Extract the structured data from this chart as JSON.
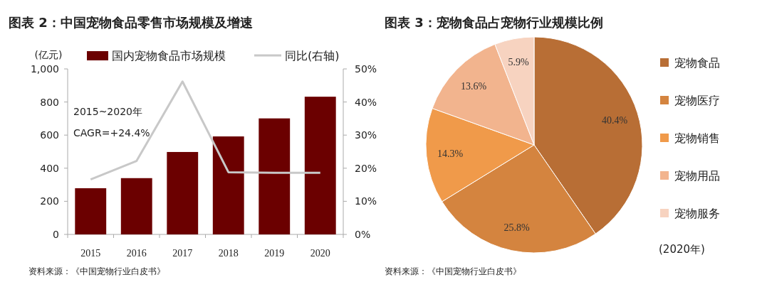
{
  "chart_data": [
    {
      "type": "bar",
      "title": "图表 2：中国宠物食品零售市场规模及增速",
      "ylabel": "(亿元)",
      "categories": [
        "2015",
        "2016",
        "2017",
        "2018",
        "2019",
        "2020"
      ],
      "series": [
        {
          "name": "国内宠物食品市场规模",
          "type": "bar",
          "color": "#6b0000",
          "values": [
            279,
            340,
            498,
            592,
            701,
            832
          ]
        },
        {
          "name": "同比(右轴)",
          "type": "line",
          "axis": "y2",
          "color": "#c8c8c8",
          "values": [
            16.6,
            22.2,
            46.2,
            18.8,
            18.6,
            18.6
          ]
        }
      ],
      "ylim": [
        0,
        1000
      ],
      "yticks": [
        0,
        200,
        400,
        600,
        800,
        {
          "value": 1000,
          "label": "1,000"
        }
      ],
      "y2lim": [
        0,
        50
      ],
      "y2ticks": [
        {
          "value": 0,
          "label": "0%"
        },
        {
          "value": 10,
          "label": "10%"
        },
        {
          "value": 20,
          "label": "20%"
        },
        {
          "value": 30,
          "label": "30%"
        },
        {
          "value": 40,
          "label": "40%"
        },
        {
          "value": 50,
          "label": "50%"
        }
      ],
      "legend": "top",
      "annotations": [
        "2015~2020年",
        "CAGR=+24.4%",
        "资料来源：《中国宠物行业白皮书》"
      ]
    },
    {
      "type": "pie",
      "title": "图表 3：宠物食品占宠物行业规模比例",
      "categories": [
        "宠物食品",
        "宠物医疗",
        "宠物销售",
        "宠物用品",
        "宠物服务"
      ],
      "values": [
        40.4,
        25.8,
        14.3,
        13.6,
        5.9
      ],
      "colors": [
        "#b86e35",
        "#d4843f",
        "#f09a4a",
        "#f2b48e",
        "#f7d3c0"
      ],
      "value_labels": [
        "40.4%",
        "25.8%",
        "14.3%",
        "13.6%",
        "5.9%"
      ],
      "legend": "right",
      "annotations": [
        "(2020年)",
        "资料来源：《中国宠物行业白皮书》"
      ]
    }
  ]
}
